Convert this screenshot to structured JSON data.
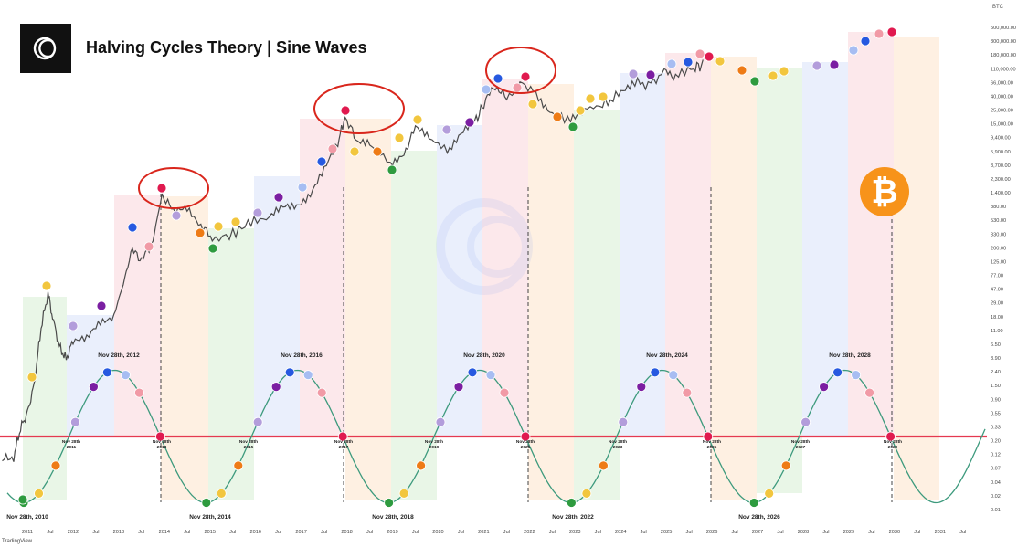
{
  "title": "Halving Cycles Theory | Sine Waves",
  "footer_brand": "TradingView",
  "icons": {
    "logo": "letter-c-logo-icon",
    "bitcoin": "bitcoin-icon",
    "watermark": "letter-c-watermark-icon"
  },
  "chart_data": {
    "type": "line",
    "axis_unit": "BTC",
    "y_scale": "log",
    "y_ticks": [
      "500,000.00",
      "300,000.00",
      "180,000.00",
      "110,000.00",
      "66,000.00",
      "40,000.00",
      "25,000.00",
      "15,000.00",
      "9,400.00",
      "5,900.00",
      "3,700.00",
      "2,300.00",
      "1,400.00",
      "880.00",
      "530.00",
      "330.00",
      "200.00",
      "125.00",
      "77.00",
      "47.00",
      "29.00",
      "18.00",
      "11.00",
      "6.50",
      "3.90",
      "2.40",
      "1.50",
      "0.90",
      "0.55",
      "0.33",
      "0.20",
      "0.12",
      "0.07",
      "0.04",
      "0.02",
      "0.01"
    ],
    "x_ticks": [
      "2011",
      "Jul",
      "2012",
      "Jul",
      "2013",
      "Jul",
      "2014",
      "Jul",
      "2015",
      "Jul",
      "2016",
      "Jul",
      "2017",
      "Jul",
      "2018",
      "Jul",
      "2019",
      "Jul",
      "2020",
      "Jul",
      "2021",
      "Jul",
      "2022",
      "Jul",
      "2023",
      "Jul",
      "2024",
      "Jul",
      "2025",
      "Jul",
      "2026",
      "Jul",
      "2027",
      "Jul",
      "2028",
      "Jul",
      "2029",
      "Jul",
      "2030",
      "Jul",
      "2031",
      "Jul"
    ],
    "sine_wave": {
      "peak_labels": [
        "Nov 28th, 2012",
        "Nov 28th, 2016",
        "Nov 28th, 2020",
        "Nov 28th, 2024",
        "Nov 28th, 2028"
      ],
      "trough_labels": [
        "Nov 28th, 2010",
        "Nov 28th, 2014",
        "Nov 28th, 2018",
        "Nov 28th, 2022",
        "Nov 28th, 2026"
      ],
      "crossing_labels": [
        "Nov 28th\n2011",
        "Nov 28th\n2013",
        "Nov 28th\n2015",
        "Nov 28th\n2017",
        "Nov 28th\n2019",
        "Nov 28th\n2021",
        "Nov 28th\n2023",
        "Nov 28th\n2025",
        "Nov 28th\n2027",
        "Nov 28th\n2029"
      ]
    },
    "colors": {
      "price": "#4a4a4a",
      "sine": "#3d9a7d",
      "baseline": "#e53950",
      "circle": "#d9261c",
      "dashed": "#444444",
      "zone_green": "#e1f3df",
      "zone_blue": "#e3e9fb",
      "zone_red": "#fbe0e4",
      "zone_orange": "#fdebd8",
      "dot_green": "#2e9b3f",
      "dot_yellow": "#f2c63e",
      "dot_orange": "#ee7b16",
      "dot_lilac": "#b39ddb",
      "dot_purple": "#7b1fa2",
      "dot_blue": "#2659e0",
      "dot_lightblue": "#a7bdf2",
      "dot_pink": "#f19aa6",
      "dot_red": "#e01a4f"
    }
  }
}
